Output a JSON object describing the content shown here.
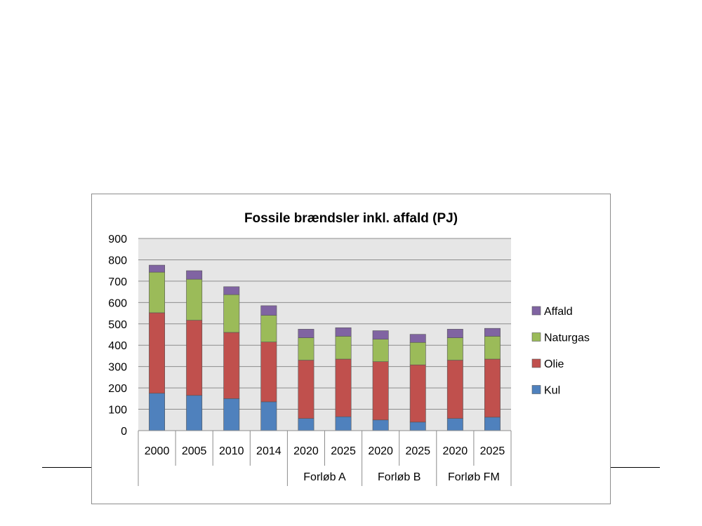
{
  "chart_data": {
    "type": "bar",
    "stacked": true,
    "title": "Fossile brændsler inkl. affald (PJ)",
    "categories": [
      "2000",
      "2005",
      "2010",
      "2014",
      "2020",
      "2025",
      "2020",
      "2025",
      "2020",
      "2025"
    ],
    "groups": [
      {
        "label": "Forløb A",
        "categories": [
          4,
          5
        ]
      },
      {
        "label": "Forløb B",
        "categories": [
          6,
          7
        ]
      },
      {
        "label": "Forløb FM",
        "categories": [
          8,
          9
        ]
      }
    ],
    "series": [
      {
        "name": "Kul",
        "color": "#4F81BD",
        "values": [
          175,
          165,
          150,
          135,
          57,
          65,
          50,
          40,
          57,
          63
        ]
      },
      {
        "name": "Olie",
        "color": "#C0504D",
        "values": [
          377,
          352,
          310,
          280,
          273,
          270,
          273,
          268,
          273,
          272
        ]
      },
      {
        "name": "Naturgas",
        "color": "#9BBB59",
        "values": [
          190,
          192,
          177,
          125,
          105,
          107,
          105,
          105,
          105,
          107
        ]
      },
      {
        "name": "Affald",
        "color": "#8064A2",
        "values": [
          33,
          40,
          37,
          45,
          40,
          40,
          40,
          38,
          40,
          37
        ]
      }
    ],
    "ylim": [
      0,
      900
    ],
    "yticks": [
      0,
      100,
      200,
      300,
      400,
      500,
      600,
      700,
      800,
      900
    ],
    "grid": true,
    "plot_background": "#E6E6E6",
    "legend_position": "right"
  }
}
